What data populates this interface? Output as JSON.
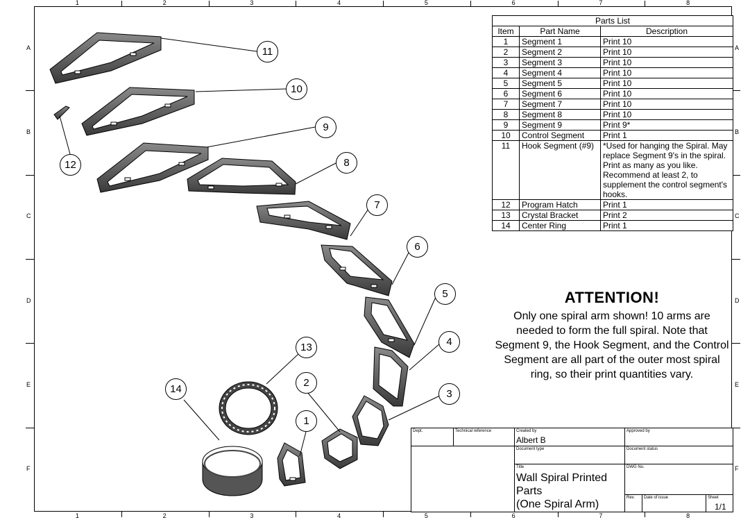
{
  "zones": {
    "columns": [
      "1",
      "2",
      "3",
      "4",
      "5",
      "6",
      "7",
      "8"
    ],
    "rows": [
      "A",
      "B",
      "C",
      "D",
      "E",
      "F"
    ]
  },
  "parts_list": {
    "title": "Parts List",
    "headers": [
      "Item",
      "Part Name",
      "Description"
    ],
    "rows": [
      {
        "item": "1",
        "name": "Segment 1",
        "desc": "Print 10"
      },
      {
        "item": "2",
        "name": "Segment 2",
        "desc": "Print 10"
      },
      {
        "item": "3",
        "name": "Segment 3",
        "desc": "Print 10"
      },
      {
        "item": "4",
        "name": "Segment 4",
        "desc": "Print 10"
      },
      {
        "item": "5",
        "name": "Segment 5",
        "desc": "Print 10"
      },
      {
        "item": "6",
        "name": "Segment 6",
        "desc": "Print 10"
      },
      {
        "item": "7",
        "name": "Segment 7",
        "desc": "Print 10"
      },
      {
        "item": "8",
        "name": "Segment 8",
        "desc": "Print 10"
      },
      {
        "item": "9",
        "name": "Segment 9",
        "desc": "Print 9*"
      },
      {
        "item": "10",
        "name": "Control Segment",
        "desc": "Print 1"
      },
      {
        "item": "11",
        "name": "Hook Segment (#9)",
        "desc": "*Used for hanging the Spiral. May replace Segment 9's in the spiral. Print as many as you like. Recommend at least 2, to supplement the control segment's hooks."
      },
      {
        "item": "12",
        "name": "Program Hatch",
        "desc": "Print 1"
      },
      {
        "item": "13",
        "name": "Crystal Bracket",
        "desc": "Print 2"
      },
      {
        "item": "14",
        "name": "Center Ring",
        "desc": "Print 1"
      }
    ]
  },
  "attention": {
    "title": "ATTENTION!",
    "body": "Only one spiral arm shown! 10 arms are needed to form the full spiral. Note that Segment 9, the Hook Segment, and the Control Segment are all part of the outer most spiral ring, so their print quantities vary."
  },
  "title_block": {
    "dept_label": "Dept.",
    "tech_ref_label": "Technical reference",
    "created_by_label": "Created by",
    "created_by": "Albert B",
    "approved_by_label": "Approved by",
    "doc_type_label": "Document type",
    "doc_status_label": "Document status",
    "title_label": "Title",
    "title_line1": "Wall Spiral Printed",
    "title_line2": "Parts",
    "title_line3": "(One Spiral Arm)",
    "dwg_label": "DWG No.",
    "rev_label": "Rev.",
    "date_label": "Date of issue",
    "sheet_label": "Sheet",
    "sheet": "1/1"
  },
  "callouts": [
    "1",
    "2",
    "3",
    "4",
    "5",
    "6",
    "7",
    "8",
    "9",
    "10",
    "11",
    "12",
    "13",
    "14"
  ]
}
